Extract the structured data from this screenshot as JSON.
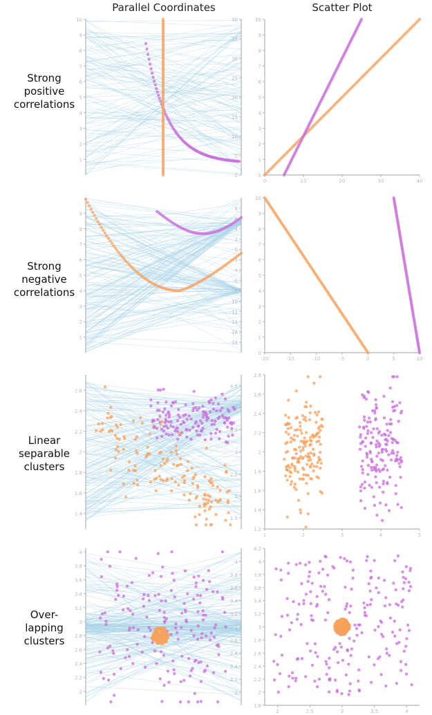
{
  "headers": {
    "parallel": "Parallel Coordinates",
    "scatter": "Scatter Plot"
  },
  "rows": [
    {
      "label": "Strong\npositive\ncorrelations"
    },
    {
      "label": "Strong\nnegative\ncorrelations"
    },
    {
      "label": "Linear\nseparable\nclusters"
    },
    {
      "label": "Over-\nlapping\nclusters"
    }
  ],
  "colors": {
    "orange": "#f5a25d",
    "purple": "#c86ddb",
    "blue_lines": "#a9d3e8",
    "axis": "#aeb4bb",
    "tick_text": "#b9b9b9"
  },
  "chart_data": [
    {
      "type": "scatter",
      "row": "Strong positive correlations",
      "x_ticks": [
        0,
        10,
        20,
        30,
        40
      ],
      "xlim": [
        0,
        40
      ],
      "y_ticks": [
        0,
        1,
        2,
        3,
        4,
        5,
        6,
        7,
        8,
        9,
        10
      ],
      "ylim": [
        0,
        10
      ],
      "pc_left_ticks": [
        1,
        2,
        3,
        4,
        5,
        6,
        7,
        8,
        9,
        10
      ],
      "pc_left_lim": [
        0,
        10
      ],
      "pc_right_ticks": [
        0,
        5,
        10,
        15,
        20,
        25,
        30,
        35,
        40
      ],
      "pc_right_lim": [
        0,
        40
      ],
      "series": [
        {
          "color": "orange",
          "x_range": [
            0,
            40
          ],
          "y_range": [
            0,
            10
          ]
        },
        {
          "color": "purple",
          "x_range": [
            5,
            25
          ],
          "y_range": [
            0,
            10
          ]
        }
      ]
    },
    {
      "type": "scatter",
      "row": "Strong negative correlations",
      "x_ticks": [
        -20,
        -15,
        -10,
        -5,
        0,
        5,
        10
      ],
      "xlim": [
        -20,
        10
      ],
      "y_ticks": [
        0,
        1,
        2,
        3,
        4,
        5,
        6,
        7,
        8,
        9,
        10
      ],
      "ylim": [
        0,
        10
      ],
      "pc_left_ticks": [
        1,
        2,
        3,
        4,
        5,
        6,
        7,
        8,
        9
      ],
      "pc_left_lim": [
        0,
        10
      ],
      "pc_right_ticks": [
        -18,
        -16,
        -14,
        -12,
        -10,
        -8,
        -6,
        -4,
        -2,
        0,
        2,
        4,
        6,
        8
      ],
      "pc_right_lim": [
        -20,
        10
      ],
      "series": [
        {
          "color": "orange",
          "x_range": [
            -20,
            0
          ],
          "y_range": [
            10,
            0
          ]
        },
        {
          "color": "purple",
          "x_range": [
            5,
            10
          ],
          "y_range": [
            10,
            0
          ]
        }
      ]
    },
    {
      "type": "scatter",
      "row": "Linear separable clusters",
      "x_ticks": [
        1,
        2,
        3,
        4,
        5
      ],
      "xlim": [
        1,
        5
      ],
      "y_ticks": [
        1.2,
        1.4,
        1.6,
        1.8,
        2.0,
        2.2,
        2.4,
        2.6,
        2.8
      ],
      "ylim": [
        1.2,
        2.8
      ],
      "pc_left_ticks": [
        1.4,
        1.6,
        1.8,
        2.0,
        2.2,
        2.4,
        2.6
      ],
      "pc_left_lim": [
        1.25,
        2.75
      ],
      "pc_right_ticks": [
        1.5,
        2.0,
        2.5,
        3.0,
        3.5,
        4.0,
        4.5
      ],
      "pc_right_lim": [
        1.25,
        4.75
      ],
      "series": [
        {
          "color": "orange",
          "x_center": 2.0,
          "x_spread": 0.5,
          "y_center": 2.0,
          "y_spread": 0.6
        },
        {
          "color": "purple",
          "x_center": 4.0,
          "x_spread": 0.55,
          "y_center": 2.0,
          "y_spread": 0.65
        }
      ]
    },
    {
      "type": "scatter",
      "row": "Overlapping clusters",
      "x_ticks": [
        2.0,
        2.5,
        3.0,
        3.5,
        4.0
      ],
      "xlim": [
        1.8,
        4.2
      ],
      "y_ticks": [
        1.8,
        2.0,
        2.2,
        2.4,
        2.6,
        2.8,
        3.0,
        3.2,
        3.4,
        3.6,
        3.8,
        4.0,
        4.2
      ],
      "ylim": [
        1.8,
        4.2
      ],
      "pc_left_ticks": [
        2.0,
        2.2,
        2.4,
        2.6,
        2.8,
        3.0,
        3.2,
        3.4,
        3.6,
        3.8,
        4.0
      ],
      "pc_left_lim": [
        1.8,
        4.05
      ],
      "pc_right_ticks": [
        2.0,
        2.2,
        2.4,
        2.6,
        2.8,
        3.0,
        3.2,
        3.4,
        3.6,
        3.8,
        4.0
      ],
      "pc_right_lim": [
        1.8,
        4.2
      ],
      "series": [
        {
          "color": "orange",
          "x_center": 3.0,
          "x_spread": 0.12,
          "y_center": 3.0,
          "y_spread": 0.12
        },
        {
          "color": "purple",
          "x_center": 3.0,
          "x_spread": 1.0,
          "y_center": 3.0,
          "y_spread": 1.0
        }
      ]
    }
  ]
}
